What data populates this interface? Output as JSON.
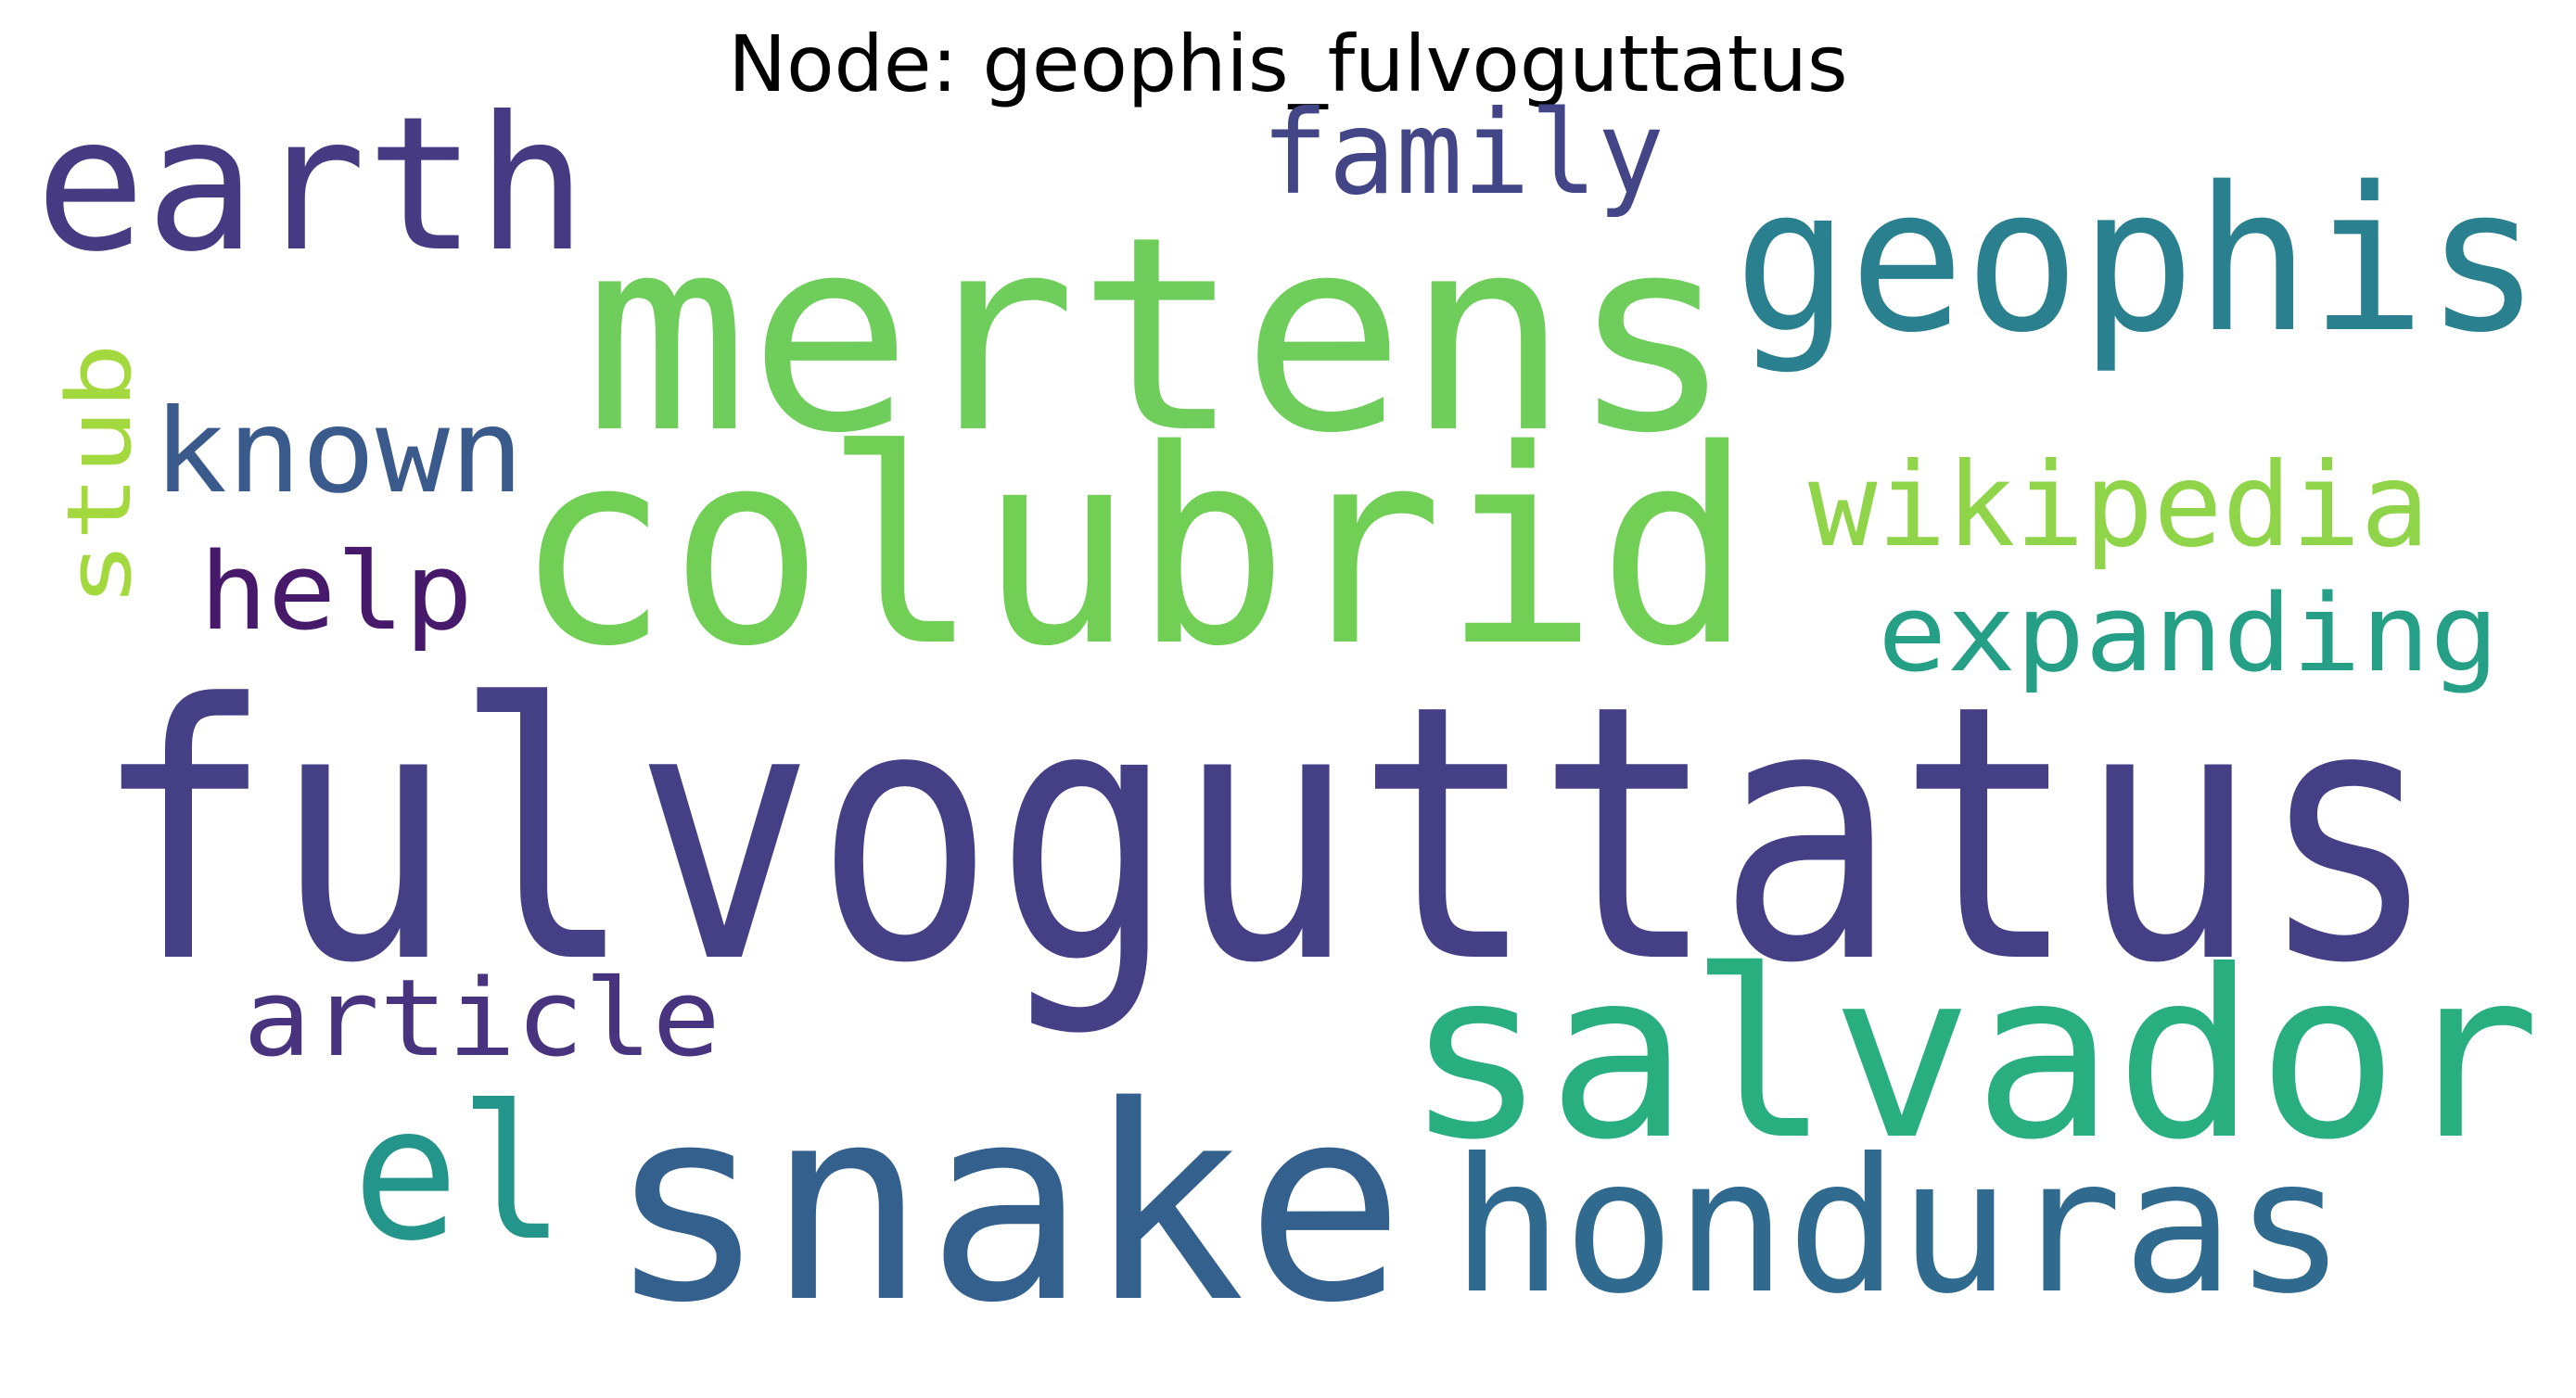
{
  "title": "Node: geophis_fulvoguttatus",
  "words": [
    {
      "text": "fulvoguttatus",
      "color": "#453f86"
    },
    {
      "text": "mertens",
      "color": "#6ecd5b"
    },
    {
      "text": "colubrid",
      "color": "#72cf56"
    },
    {
      "text": "snake",
      "color": "#33608d"
    },
    {
      "text": "salvador",
      "color": "#29ae7f"
    },
    {
      "text": "geophis",
      "color": "#2a808e"
    },
    {
      "text": "earth",
      "color": "#463a83"
    },
    {
      "text": "honduras",
      "color": "#306a8e"
    },
    {
      "text": "el",
      "color": "#23958b"
    },
    {
      "text": "family",
      "color": "#424586"
    },
    {
      "text": "known",
      "color": "#3b5a8c"
    },
    {
      "text": "wikipedia",
      "color": "#8fd449"
    },
    {
      "text": "expanding",
      "color": "#25a086"
    },
    {
      "text": "help",
      "color": "#46196b"
    },
    {
      "text": "article",
      "color": "#47337e"
    },
    {
      "text": "stub",
      "color": "#a3d93e"
    }
  ]
}
